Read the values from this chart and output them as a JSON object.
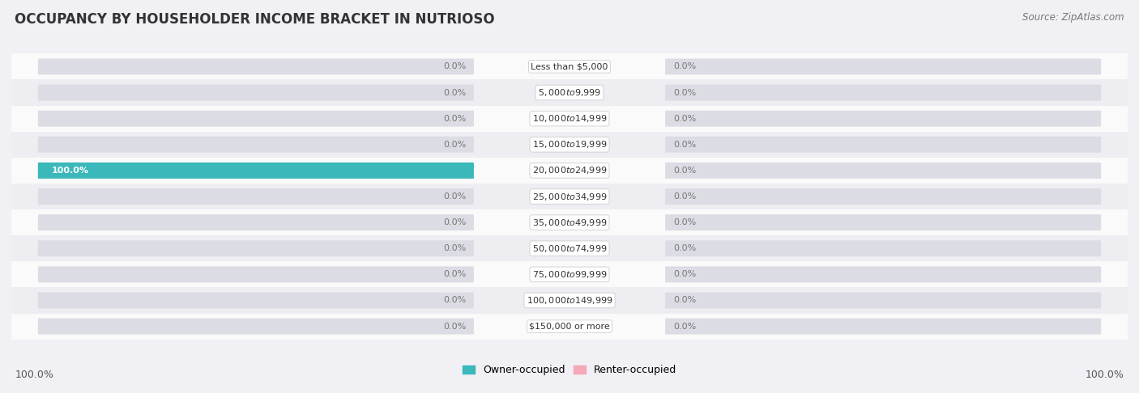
{
  "title": "OCCUPANCY BY HOUSEHOLDER INCOME BRACKET IN NUTRIOSO",
  "source": "Source: ZipAtlas.com",
  "categories": [
    "Less than $5,000",
    "$5,000 to $9,999",
    "$10,000 to $14,999",
    "$15,000 to $19,999",
    "$20,000 to $24,999",
    "$25,000 to $34,999",
    "$35,000 to $49,999",
    "$50,000 to $74,999",
    "$75,000 to $99,999",
    "$100,000 to $149,999",
    "$150,000 or more"
  ],
  "owner_values": [
    0.0,
    0.0,
    0.0,
    0.0,
    100.0,
    0.0,
    0.0,
    0.0,
    0.0,
    0.0,
    0.0
  ],
  "renter_values": [
    0.0,
    0.0,
    0.0,
    0.0,
    0.0,
    0.0,
    0.0,
    0.0,
    0.0,
    0.0,
    0.0
  ],
  "owner_color": "#3ab8ba",
  "renter_color": "#f4a8b8",
  "bar_bg_color": "#dcdce4",
  "owner_label": "Owner-occupied",
  "renter_label": "Renter-occupied",
  "title_fontsize": 12,
  "source_fontsize": 8.5,
  "axis_label_fontsize": 9,
  "cat_label_fontsize": 8,
  "value_fontsize": 8,
  "max_value": 100.0,
  "background_color": "#f0f0f5",
  "row_bg_light": "#fafafa",
  "row_bg_dark": "#ededf2"
}
